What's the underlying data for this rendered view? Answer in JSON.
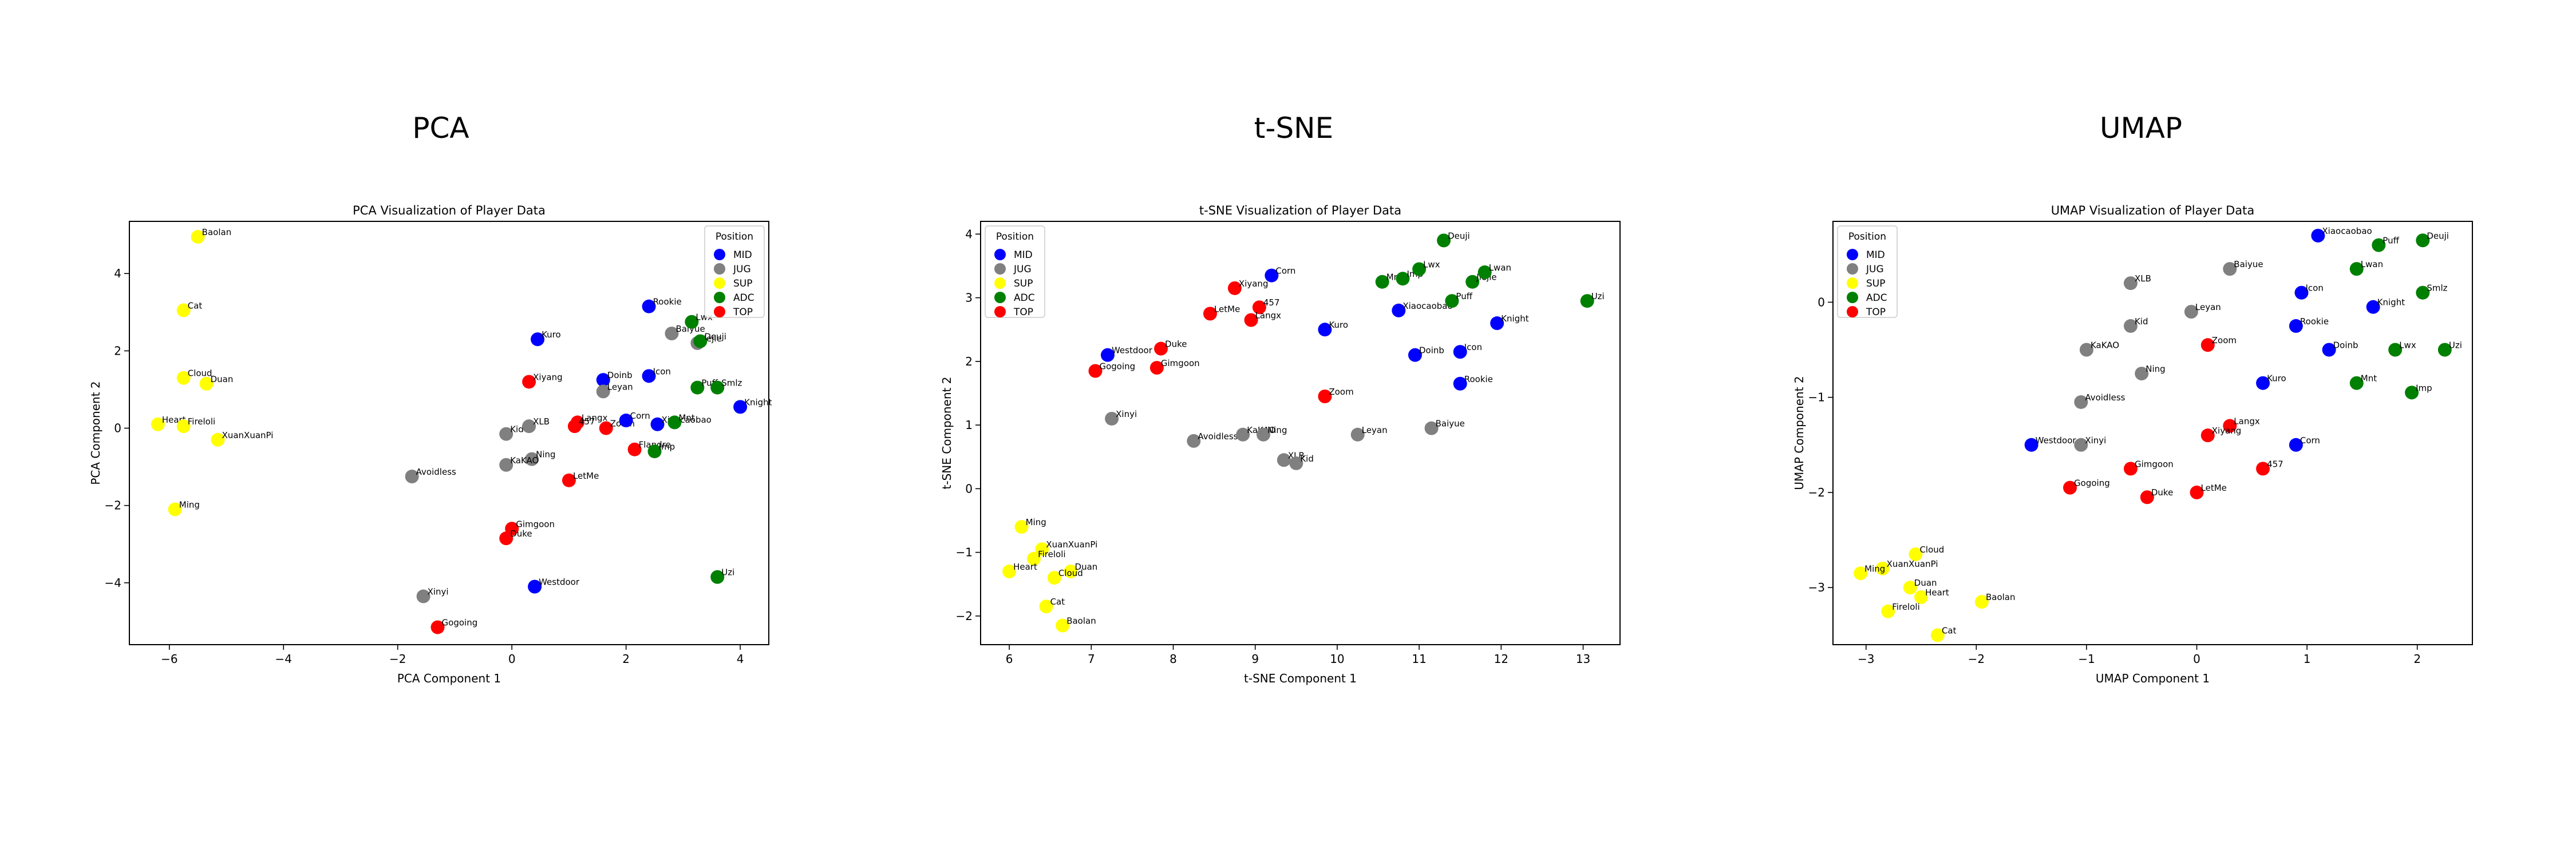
{
  "headings": [
    "PCA",
    "t-SNE",
    "UMAP"
  ],
  "legend_title": "Position",
  "positions": [
    {
      "name": "MID",
      "color": "#0000ff"
    },
    {
      "name": "JUG",
      "color": "#808080"
    },
    {
      "name": "SUP",
      "color": "#ffff00"
    },
    {
      "name": "ADC",
      "color": "#008000"
    },
    {
      "name": "TOP",
      "color": "#ff0000"
    }
  ],
  "chart_data": [
    {
      "type": "scatter",
      "title": "PCA Visualization of Player Data",
      "xlabel": "PCA Component 1",
      "ylabel": "PCA Component 2",
      "xlim": [
        -6.7,
        4.5
      ],
      "ylim": [
        -5.6,
        5.35
      ],
      "xticks": [
        -6,
        -4,
        -2,
        0,
        2,
        4
      ],
      "yticks": [
        -4,
        -2,
        0,
        2,
        4
      ],
      "legend_position": "top-right",
      "points": [
        {
          "label": "Baolan",
          "pos": "SUP",
          "x": -5.5,
          "y": 4.95
        },
        {
          "label": "Cat",
          "pos": "SUP",
          "x": -5.75,
          "y": 3.05
        },
        {
          "label": "Cloud",
          "pos": "SUP",
          "x": -5.75,
          "y": 1.3
        },
        {
          "label": "Duan",
          "pos": "SUP",
          "x": -5.35,
          "y": 1.15
        },
        {
          "label": "Heart",
          "pos": "SUP",
          "x": -6.2,
          "y": 0.1
        },
        {
          "label": "Fireloli",
          "pos": "SUP",
          "x": -5.75,
          "y": 0.05
        },
        {
          "label": "XuanXuanPi",
          "pos": "SUP",
          "x": -5.15,
          "y": -0.3
        },
        {
          "label": "Ming",
          "pos": "SUP",
          "x": -5.9,
          "y": -2.1
        },
        {
          "label": "Avoidless",
          "pos": "JUG",
          "x": -1.75,
          "y": -1.25
        },
        {
          "label": "Xinyi",
          "pos": "JUG",
          "x": -1.55,
          "y": -4.35
        },
        {
          "label": "Gogoing",
          "pos": "TOP",
          "x": -1.3,
          "y": -5.15
        },
        {
          "label": "Kid",
          "pos": "JUG",
          "x": -0.1,
          "y": -0.15
        },
        {
          "label": "XLB",
          "pos": "JUG",
          "x": 0.3,
          "y": 0.05
        },
        {
          "label": "Ning",
          "pos": "JUG",
          "x": 0.35,
          "y": -0.8
        },
        {
          "label": "KaKAO",
          "pos": "JUG",
          "x": -0.1,
          "y": -0.95
        },
        {
          "label": "Gimgoon",
          "pos": "TOP",
          "x": 0.0,
          "y": -2.6
        },
        {
          "label": "Duke",
          "pos": "TOP",
          "x": -0.1,
          "y": -2.85
        },
        {
          "label": "Westdoor",
          "pos": "MID",
          "x": 0.4,
          "y": -4.1
        },
        {
          "label": "Xiyang",
          "pos": "TOP",
          "x": 0.3,
          "y": 1.2
        },
        {
          "label": "Kuro",
          "pos": "MID",
          "x": 0.45,
          "y": 2.3
        },
        {
          "label": "LetMe",
          "pos": "TOP",
          "x": 1.0,
          "y": -1.35
        },
        {
          "label": "Langx",
          "pos": "TOP",
          "x": 1.15,
          "y": 0.15
        },
        {
          "label": "457",
          "pos": "TOP",
          "x": 1.1,
          "y": 0.05
        },
        {
          "label": "Zoom",
          "pos": "TOP",
          "x": 1.65,
          "y": 0.0
        },
        {
          "label": "Doinb",
          "pos": "MID",
          "x": 1.6,
          "y": 1.25
        },
        {
          "label": "Leyan",
          "pos": "JUG",
          "x": 1.6,
          "y": 0.95
        },
        {
          "label": "Corn",
          "pos": "MID",
          "x": 2.0,
          "y": 0.2
        },
        {
          "label": "Icon",
          "pos": "MID",
          "x": 2.4,
          "y": 1.35
        },
        {
          "label": "Rookie",
          "pos": "MID",
          "x": 2.4,
          "y": 3.15
        },
        {
          "label": "Baiyue",
          "pos": "JUG",
          "x": 2.8,
          "y": 2.45
        },
        {
          "label": "Xiaocaobao",
          "pos": "MID",
          "x": 2.55,
          "y": 0.1
        },
        {
          "label": "Mnt",
          "pos": "ADC",
          "x": 2.85,
          "y": 0.15
        },
        {
          "label": "Flandre",
          "pos": "TOP",
          "x": 2.15,
          "y": -0.55
        },
        {
          "label": "Imp",
          "pos": "ADC",
          "x": 2.5,
          "y": -0.6
        },
        {
          "label": "Jiejie",
          "pos": "JUG",
          "x": 3.25,
          "y": 2.2
        },
        {
          "label": "Lwx",
          "pos": "ADC",
          "x": 3.15,
          "y": 2.75
        },
        {
          "label": "Deuji",
          "pos": "ADC",
          "x": 3.3,
          "y": 2.25
        },
        {
          "label": "Puff",
          "pos": "ADC",
          "x": 3.25,
          "y": 1.05
        },
        {
          "label": "Smlz",
          "pos": "ADC",
          "x": 3.6,
          "y": 1.05
        },
        {
          "label": "Knight",
          "pos": "MID",
          "x": 4.0,
          "y": 0.55
        },
        {
          "label": "Uzi",
          "pos": "ADC",
          "x": 3.6,
          "y": -3.85
        }
      ]
    },
    {
      "type": "scatter",
      "title": "t-SNE Visualization of Player Data",
      "xlabel": "t-SNE Component 1",
      "ylabel": "t-SNE Component 2",
      "xlim": [
        5.65,
        13.45
      ],
      "ylim": [
        -2.45,
        4.2
      ],
      "xticks": [
        6,
        7,
        8,
        9,
        10,
        11,
        12,
        13
      ],
      "yticks": [
        -2,
        -1,
        0,
        1,
        2,
        3,
        4
      ],
      "legend_position": "top-left",
      "points": [
        {
          "label": "Ming",
          "pos": "SUP",
          "x": 6.15,
          "y": -0.6
        },
        {
          "label": "XuanXuanPi",
          "pos": "SUP",
          "x": 6.4,
          "y": -0.95
        },
        {
          "label": "Fireloli",
          "pos": "SUP",
          "x": 6.3,
          "y": -1.1
        },
        {
          "label": "Heart",
          "pos": "SUP",
          "x": 6.0,
          "y": -1.3
        },
        {
          "label": "Duan",
          "pos": "SUP",
          "x": 6.75,
          "y": -1.3
        },
        {
          "label": "Cloud",
          "pos": "SUP",
          "x": 6.55,
          "y": -1.4
        },
        {
          "label": "Cat",
          "pos": "SUP",
          "x": 6.45,
          "y": -1.85
        },
        {
          "label": "Baolan",
          "pos": "SUP",
          "x": 6.65,
          "y": -2.15
        },
        {
          "label": "Westdoor",
          "pos": "MID",
          "x": 7.2,
          "y": 2.1
        },
        {
          "label": "Gogoing",
          "pos": "TOP",
          "x": 7.05,
          "y": 1.85
        },
        {
          "label": "Xinyi",
          "pos": "JUG",
          "x": 7.25,
          "y": 1.1
        },
        {
          "label": "Duke",
          "pos": "TOP",
          "x": 7.85,
          "y": 2.2
        },
        {
          "label": "Gimgoon",
          "pos": "TOP",
          "x": 7.8,
          "y": 1.9
        },
        {
          "label": "Avoidless",
          "pos": "JUG",
          "x": 8.25,
          "y": 0.75
        },
        {
          "label": "KaKAO",
          "pos": "JUG",
          "x": 8.85,
          "y": 0.85
        },
        {
          "label": "Ning",
          "pos": "JUG",
          "x": 9.1,
          "y": 0.85
        },
        {
          "label": "XLB",
          "pos": "JUG",
          "x": 9.35,
          "y": 0.45
        },
        {
          "label": "Kid",
          "pos": "JUG",
          "x": 9.5,
          "y": 0.4
        },
        {
          "label": "Xiyang",
          "pos": "TOP",
          "x": 8.75,
          "y": 3.15
        },
        {
          "label": "LetMe",
          "pos": "TOP",
          "x": 8.45,
          "y": 2.75
        },
        {
          "label": "457",
          "pos": "TOP",
          "x": 9.05,
          "y": 2.85
        },
        {
          "label": "Langx",
          "pos": "TOP",
          "x": 8.95,
          "y": 2.65
        },
        {
          "label": "Corn",
          "pos": "MID",
          "x": 9.2,
          "y": 3.35
        },
        {
          "label": "Kuro",
          "pos": "MID",
          "x": 9.85,
          "y": 2.5
        },
        {
          "label": "Zoom",
          "pos": "TOP",
          "x": 9.85,
          "y": 1.45
        },
        {
          "label": "Leyan",
          "pos": "JUG",
          "x": 10.25,
          "y": 0.85
        },
        {
          "label": "Baiyue",
          "pos": "JUG",
          "x": 11.15,
          "y": 0.95
        },
        {
          "label": "Mnt",
          "pos": "ADC",
          "x": 10.55,
          "y": 3.25
        },
        {
          "label": "Imp",
          "pos": "ADC",
          "x": 10.8,
          "y": 3.3
        },
        {
          "label": "Lwx",
          "pos": "ADC",
          "x": 11.0,
          "y": 3.45
        },
        {
          "label": "Deuji",
          "pos": "ADC",
          "x": 11.3,
          "y": 3.9
        },
        {
          "label": "Xiaocaobao",
          "pos": "MID",
          "x": 10.75,
          "y": 2.8
        },
        {
          "label": "Puff",
          "pos": "ADC",
          "x": 11.4,
          "y": 2.95
        },
        {
          "label": "Jiejie",
          "pos": "ADC",
          "x": 11.65,
          "y": 3.25
        },
        {
          "label": "Lwan",
          "pos": "ADC",
          "x": 11.8,
          "y": 3.4
        },
        {
          "label": "Doinb",
          "pos": "MID",
          "x": 10.95,
          "y": 2.1
        },
        {
          "label": "Icon",
          "pos": "MID",
          "x": 11.5,
          "y": 2.15
        },
        {
          "label": "Rookie",
          "pos": "MID",
          "x": 11.5,
          "y": 1.65
        },
        {
          "label": "Knight",
          "pos": "MID",
          "x": 11.95,
          "y": 2.6
        },
        {
          "label": "Uzi",
          "pos": "ADC",
          "x": 13.05,
          "y": 2.95
        }
      ]
    },
    {
      "type": "scatter",
      "title": "UMAP Visualization of Player Data",
      "xlabel": "UMAP Component 1",
      "ylabel": "UMAP Component 2",
      "xlim": [
        -3.3,
        2.5
      ],
      "ylim": [
        -3.6,
        0.85
      ],
      "xticks": [
        -3,
        -2,
        -1,
        0,
        1,
        2
      ],
      "yticks": [
        -3,
        -2,
        -1,
        0
      ],
      "legend_position": "top-left",
      "points": [
        {
          "label": "Xiaocaobao",
          "pos": "MID",
          "x": 1.1,
          "y": 0.7
        },
        {
          "label": "Puff",
          "pos": "ADC",
          "x": 1.65,
          "y": 0.6
        },
        {
          "label": "Deuji",
          "pos": "ADC",
          "x": 2.05,
          "y": 0.65
        },
        {
          "label": "Lwan",
          "pos": "ADC",
          "x": 1.45,
          "y": 0.35
        },
        {
          "label": "Icon",
          "pos": "MID",
          "x": 0.95,
          "y": 0.1
        },
        {
          "label": "Smlz",
          "pos": "ADC",
          "x": 2.05,
          "y": 0.1
        },
        {
          "label": "Knight",
          "pos": "MID",
          "x": 1.6,
          "y": -0.05
        },
        {
          "label": "Baiyue",
          "pos": "JUG",
          "x": 0.3,
          "y": 0.35
        },
        {
          "label": "XLB",
          "pos": "JUG",
          "x": -0.6,
          "y": 0.2
        },
        {
          "label": "Leyan",
          "pos": "JUG",
          "x": -0.05,
          "y": -0.1
        },
        {
          "label": "Kid",
          "pos": "JUG",
          "x": -0.6,
          "y": -0.25
        },
        {
          "label": "Rookie",
          "pos": "MID",
          "x": 0.9,
          "y": -0.25
        },
        {
          "label": "KaKAO",
          "pos": "JUG",
          "x": -1.0,
          "y": -0.5
        },
        {
          "label": "Zoom",
          "pos": "TOP",
          "x": 0.1,
          "y": -0.45
        },
        {
          "label": "Doinb",
          "pos": "MID",
          "x": 1.2,
          "y": -0.5
        },
        {
          "label": "Lwx",
          "pos": "ADC",
          "x": 1.8,
          "y": -0.5
        },
        {
          "label": "Uzi",
          "pos": "ADC",
          "x": 2.25,
          "y": -0.5
        },
        {
          "label": "Ning",
          "pos": "JUG",
          "x": -0.5,
          "y": -0.75
        },
        {
          "label": "Kuro",
          "pos": "MID",
          "x": 0.6,
          "y": -0.85
        },
        {
          "label": "Mnt",
          "pos": "ADC",
          "x": 1.45,
          "y": -0.85
        },
        {
          "label": "Imp",
          "pos": "ADC",
          "x": 1.95,
          "y": -0.95
        },
        {
          "label": "Avoidless",
          "pos": "JUG",
          "x": -1.05,
          "y": -1.05
        },
        {
          "label": "Langx",
          "pos": "TOP",
          "x": 0.3,
          "y": -1.3
        },
        {
          "label": "Xiyang",
          "pos": "TOP",
          "x": 0.1,
          "y": -1.4
        },
        {
          "label": "Westdoor",
          "pos": "MID",
          "x": -1.5,
          "y": -1.5
        },
        {
          "label": "Xinyi",
          "pos": "JUG",
          "x": -1.05,
          "y": -1.5
        },
        {
          "label": "Corn",
          "pos": "MID",
          "x": 0.9,
          "y": -1.5
        },
        {
          "label": "Gimgoon",
          "pos": "TOP",
          "x": -0.6,
          "y": -1.75
        },
        {
          "label": "457",
          "pos": "TOP",
          "x": 0.6,
          "y": -1.75
        },
        {
          "label": "Gogoing",
          "pos": "TOP",
          "x": -1.15,
          "y": -1.95
        },
        {
          "label": "LetMe",
          "pos": "TOP",
          "x": 0.0,
          "y": -2.0
        },
        {
          "label": "Duke",
          "pos": "TOP",
          "x": -0.45,
          "y": -2.05
        },
        {
          "label": "Cloud",
          "pos": "SUP",
          "x": -2.55,
          "y": -2.65
        },
        {
          "label": "XuanXuanPi",
          "pos": "SUP",
          "x": -2.85,
          "y": -2.8
        },
        {
          "label": "Ming",
          "pos": "SUP",
          "x": -3.05,
          "y": -2.85
        },
        {
          "label": "Duan",
          "pos": "SUP",
          "x": -2.6,
          "y": -3.0
        },
        {
          "label": "Heart",
          "pos": "SUP",
          "x": -2.5,
          "y": -3.1
        },
        {
          "label": "Baolan",
          "pos": "SUP",
          "x": -1.95,
          "y": -3.15
        },
        {
          "label": "Fireloli",
          "pos": "SUP",
          "x": -2.8,
          "y": -3.25
        },
        {
          "label": "Cat",
          "pos": "SUP",
          "x": -2.35,
          "y": -3.5
        }
      ]
    }
  ]
}
